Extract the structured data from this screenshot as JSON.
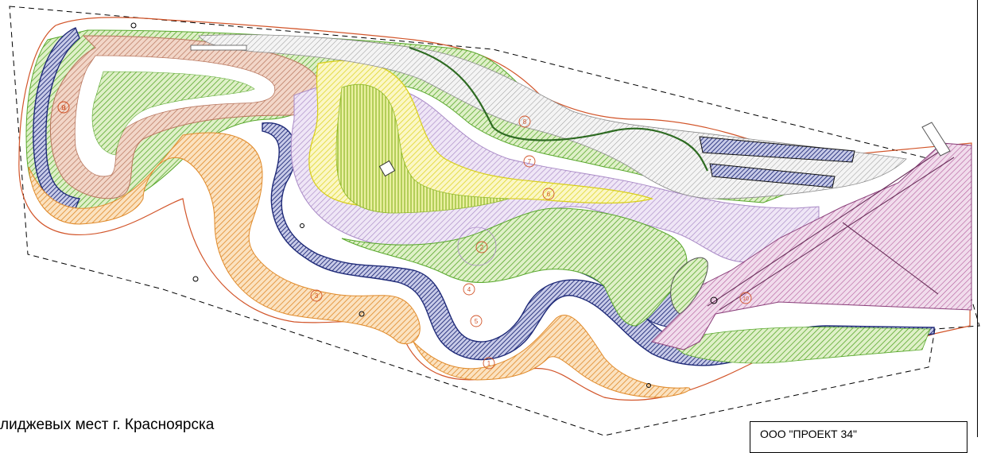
{
  "caption": "лиджевых  мест г. Красноярска",
  "stamp_text": "ООО \"ПРОЕКТ 34\"",
  "zone_colors": {
    "outline": "#d2552a",
    "water": "#1f2a78",
    "green": "#59a82c",
    "orange": "#e08a2a",
    "violet": "#a98ac6",
    "yellow": "#e9e23a",
    "pink": "#c98ab8",
    "brown": "#b8755c",
    "grey": "#8a8a8a",
    "boundary": "#000000"
  },
  "zone_markers": [
    {
      "id": "m1",
      "label": "1"
    },
    {
      "id": "m2",
      "label": "2"
    },
    {
      "id": "m3",
      "label": "3"
    },
    {
      "id": "m4",
      "label": "4"
    },
    {
      "id": "m5",
      "label": "5"
    },
    {
      "id": "m6",
      "label": "6"
    },
    {
      "id": "m7",
      "label": "7"
    },
    {
      "id": "m8",
      "label": "8"
    },
    {
      "id": "m9",
      "label": "9"
    },
    {
      "id": "m10",
      "label": "10"
    },
    {
      "id": "m11",
      "label": "11"
    }
  ]
}
